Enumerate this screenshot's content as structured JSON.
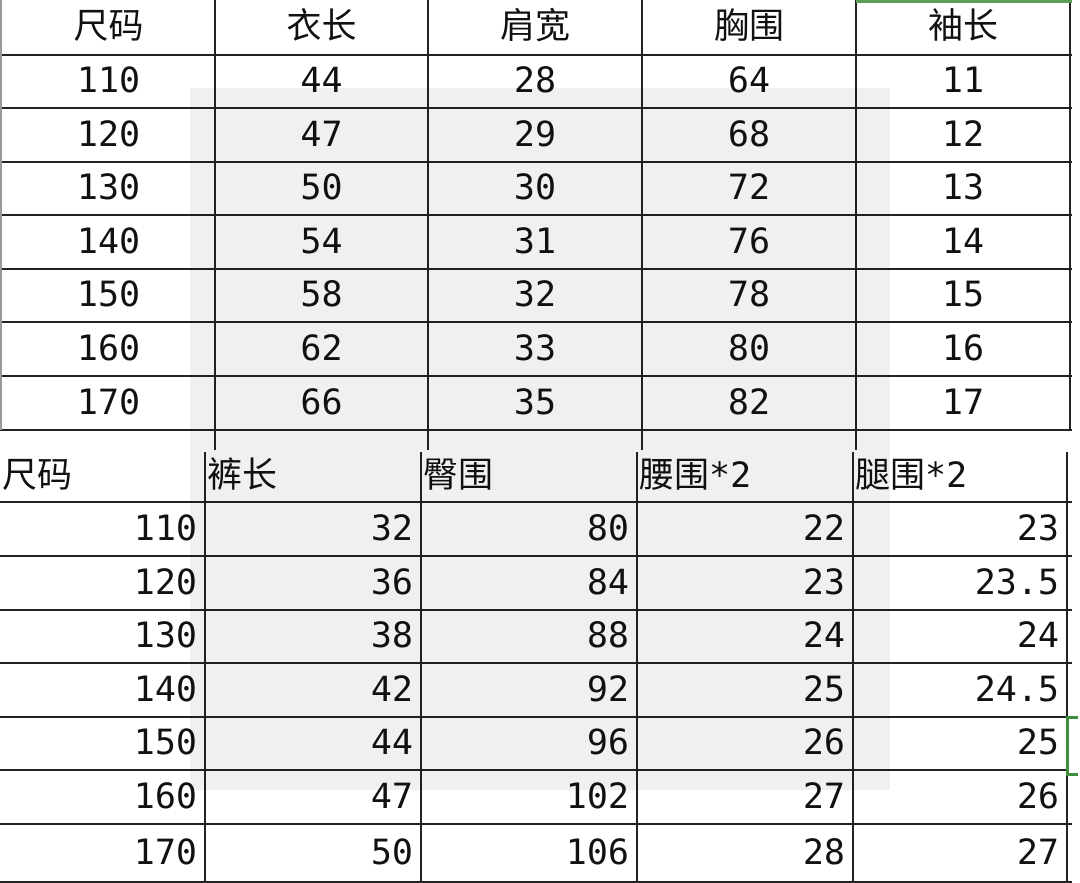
{
  "top_table": {
    "headers": [
      "尺码",
      "衣长",
      "肩宽",
      "胸围",
      "袖长"
    ],
    "rows": [
      [
        "110",
        "44",
        "28",
        "64",
        "11"
      ],
      [
        "120",
        "47",
        "29",
        "68",
        "12"
      ],
      [
        "130",
        "50",
        "30",
        "72",
        "13"
      ],
      [
        "140",
        "54",
        "31",
        "76",
        "14"
      ],
      [
        "150",
        "58",
        "32",
        "78",
        "15"
      ],
      [
        "160",
        "62",
        "33",
        "80",
        "16"
      ],
      [
        "170",
        "66",
        "35",
        "82",
        "17"
      ]
    ]
  },
  "bottom_table": {
    "headers": [
      "尺码",
      "裤长",
      "臀围",
      "腰围*2",
      "腿围*2"
    ],
    "rows": [
      [
        "110",
        "32",
        "80",
        "22",
        "23"
      ],
      [
        "120",
        "36",
        "84",
        "23",
        "23.5"
      ],
      [
        "130",
        "38",
        "88",
        "24",
        "24"
      ],
      [
        "140",
        "42",
        "92",
        "25",
        "24.5"
      ],
      [
        "150",
        "44",
        "96",
        "26",
        "25"
      ],
      [
        "160",
        "47",
        "102",
        "27",
        "26"
      ],
      [
        "170",
        "50",
        "106",
        "28",
        "27"
      ]
    ]
  },
  "colors": {
    "selection": "#3f8f3f",
    "grid": "#222222"
  }
}
